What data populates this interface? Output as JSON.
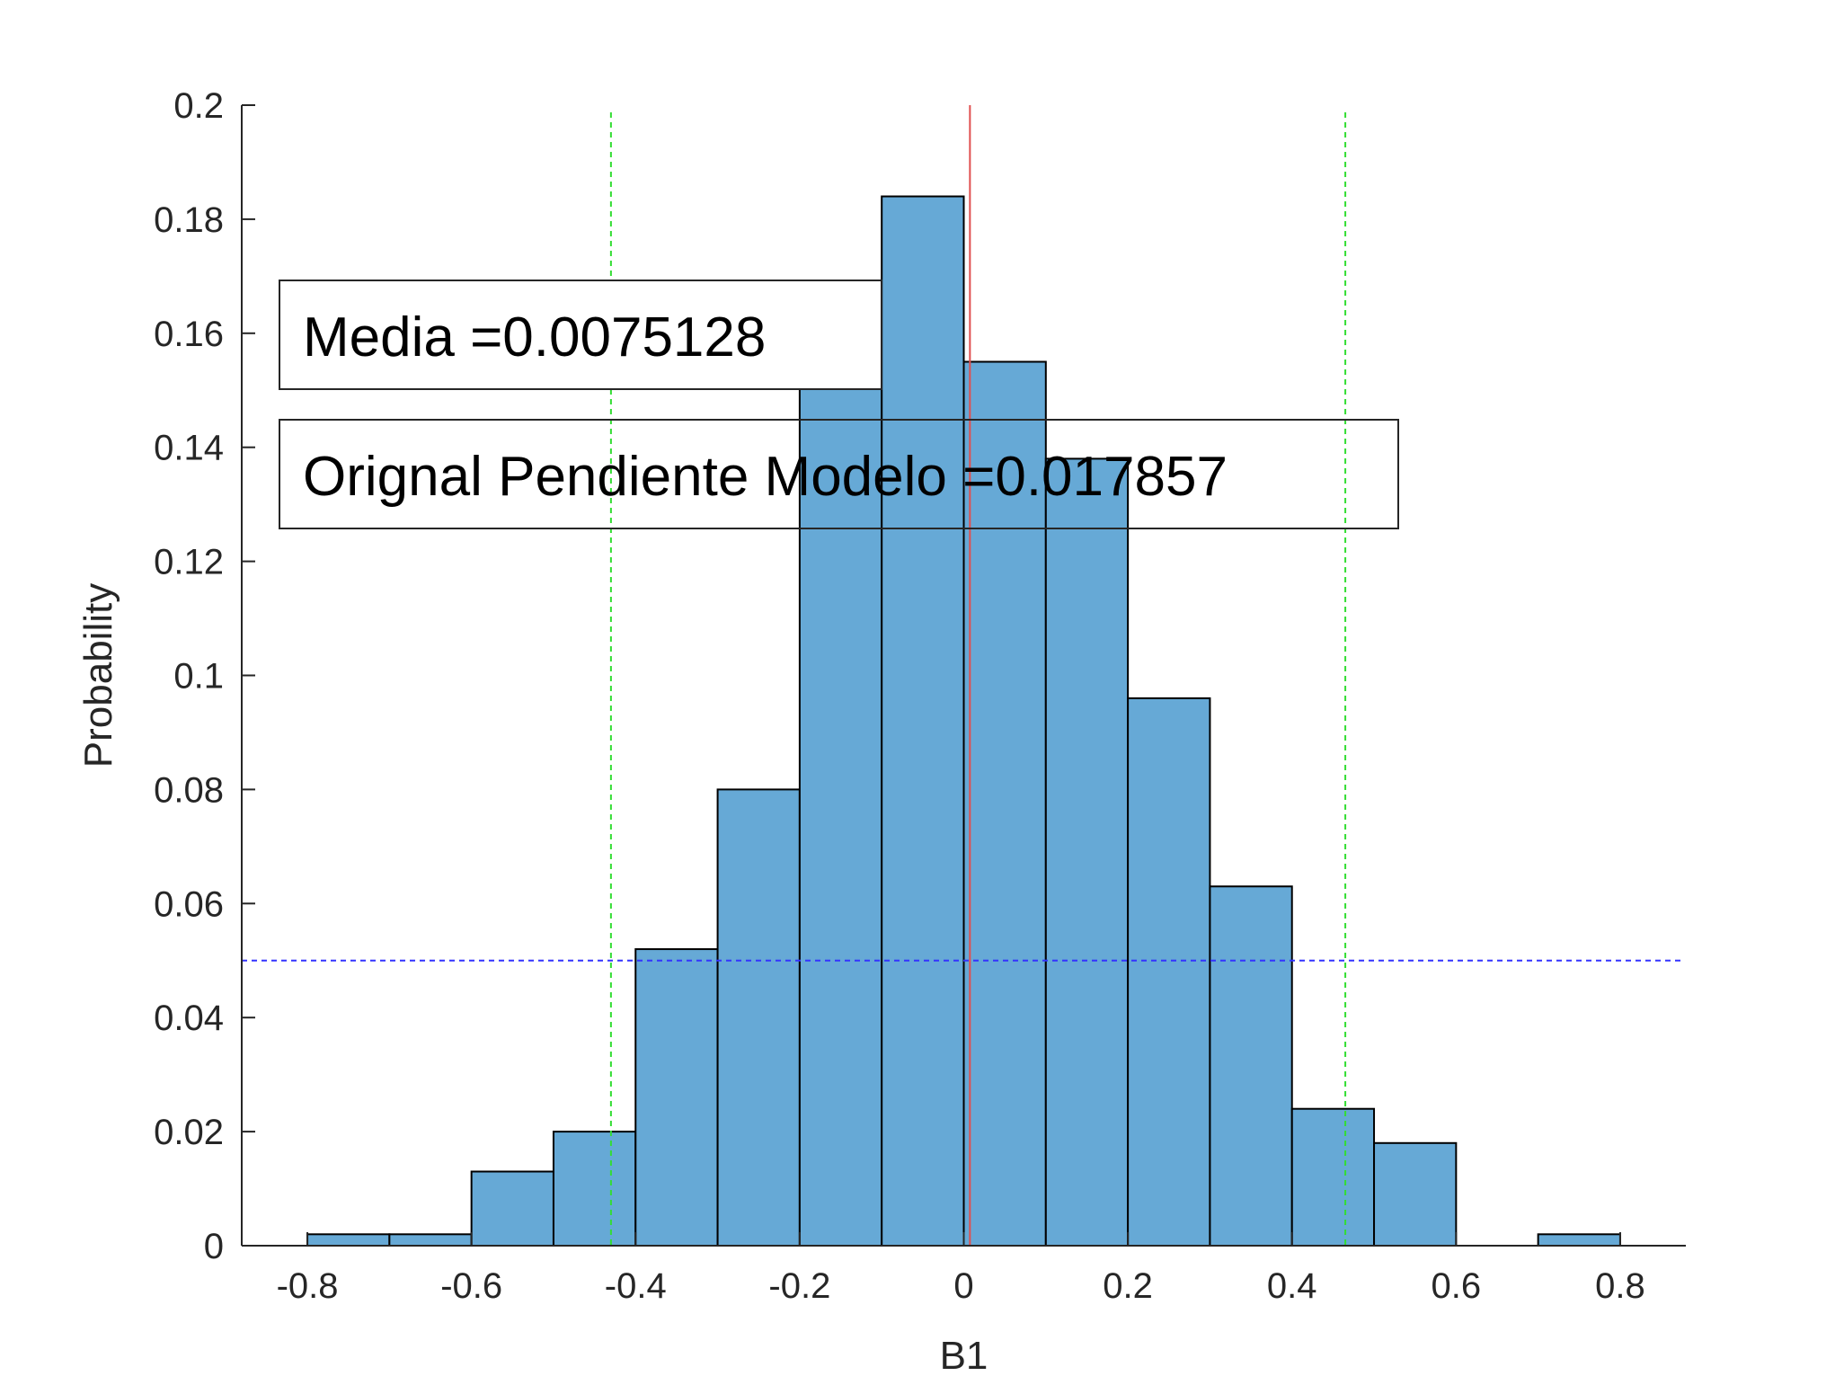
{
  "chart_data": {
    "type": "bar",
    "bin_edges": [
      -0.8,
      -0.7,
      -0.6,
      -0.5,
      -0.4,
      -0.3,
      -0.2,
      -0.1,
      0.0,
      0.1,
      0.2,
      0.3,
      0.4,
      0.5,
      0.6,
      0.7,
      0.8
    ],
    "values": [
      0.002,
      0.002,
      0.013,
      0.02,
      0.052,
      0.08,
      0.151,
      0.184,
      0.155,
      0.138,
      0.096,
      0.063,
      0.024,
      0.018,
      0.0,
      0.002
    ],
    "xlabel": "B1",
    "ylabel": "Probability",
    "xlim": [
      -0.88,
      0.88
    ],
    "ylim": [
      0,
      0.2
    ],
    "xticks": [
      -0.8,
      -0.6,
      -0.4,
      -0.2,
      0,
      0.2,
      0.4,
      0.6,
      0.8
    ],
    "xtick_labels": [
      "-0.8",
      "-0.6",
      "-0.4",
      "-0.2",
      "0",
      "0.2",
      "0.4",
      "0.6",
      "0.8"
    ],
    "yticks": [
      0,
      0.02,
      0.04,
      0.06,
      0.08,
      0.1,
      0.12,
      0.14,
      0.16,
      0.18,
      0.2
    ],
    "ytick_labels": [
      "0",
      "0.02",
      "0.04",
      "0.06",
      "0.08",
      "0.1",
      "0.12",
      "0.14",
      "0.16",
      "0.18",
      "0.2"
    ],
    "grid": false,
    "bar_color": "#66a9d6",
    "bar_edge_color": "#000000",
    "reference_lines": {
      "mean_x": 0.0075128,
      "mean_color": "#e05050",
      "ci_x": [
        -0.43,
        0.465
      ],
      "ci_color": "#33dd33",
      "threshold_y": 0.05,
      "threshold_color": "#3333ff"
    },
    "annotations": [
      {
        "text": "Media =0.0075128"
      },
      {
        "text": "Orignal Pendiente Modelo =0.017857"
      }
    ]
  }
}
